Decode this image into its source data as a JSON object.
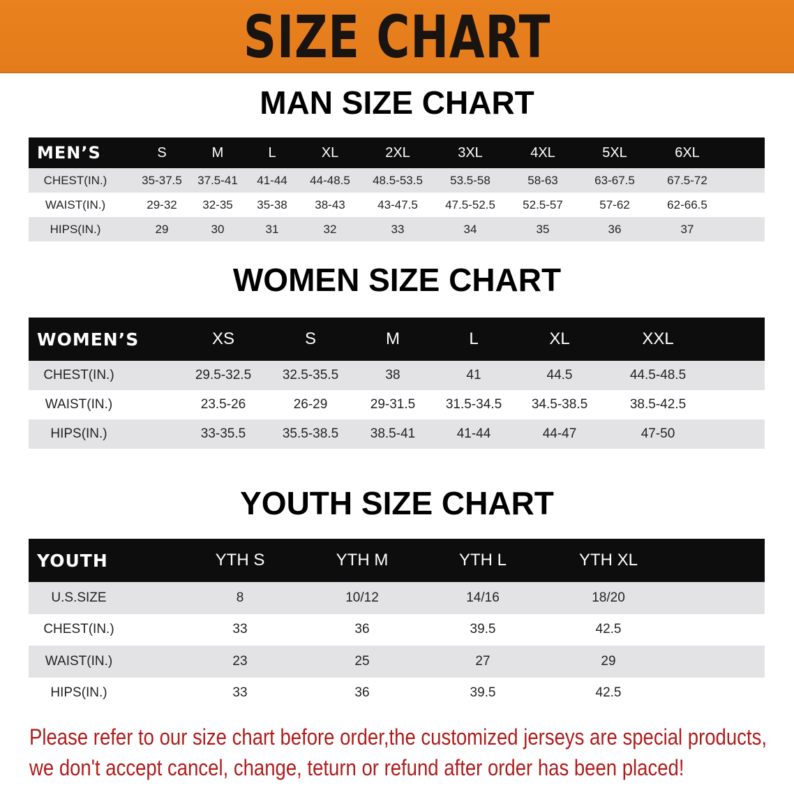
{
  "banner": {
    "title": "SIZE CHART",
    "color": "#e8801f"
  },
  "men": {
    "title": "MAN SIZE CHART",
    "header_label": "MEN’S",
    "sizes": [
      "S",
      "M",
      "L",
      "XL",
      "2XL",
      "3XL",
      "4XL",
      "5XL",
      "6XL"
    ],
    "rows": [
      {
        "label": "CHEST(IN.)",
        "values": [
          "35-37.5",
          "37.5-41",
          "41-44",
          "44-48.5",
          "48.5-53.5",
          "53.5-58",
          "58-63",
          "63-67.5",
          "67.5-72"
        ]
      },
      {
        "label": "WAIST(IN.)",
        "values": [
          "29-32",
          "32-35",
          "35-38",
          "38-43",
          "43-47.5",
          "47.5-52.5",
          "52.5-57",
          "57-62",
          "62-66.5"
        ]
      },
      {
        "label": "HIPS(IN.)",
        "values": [
          "29",
          "30",
          "31",
          "32",
          "33",
          "34",
          "35",
          "36",
          "37"
        ]
      }
    ]
  },
  "women": {
    "title": "WOMEN SIZE CHART",
    "header_label": "WOMEN’S",
    "sizes": [
      "XS",
      "S",
      "M",
      "L",
      "XL",
      "XXL"
    ],
    "rows": [
      {
        "label": "CHEST(IN.)",
        "values": [
          "29.5-32.5",
          "32.5-35.5",
          "38",
          "41",
          "44.5",
          "44.5-48.5"
        ]
      },
      {
        "label": "WAIST(IN.)",
        "values": [
          "23.5-26",
          "26-29",
          "29-31.5",
          "31.5-34.5",
          "34.5-38.5",
          "38.5-42.5"
        ]
      },
      {
        "label": "HIPS(IN.)",
        "values": [
          "33-35.5",
          "35.5-38.5",
          "38.5-41",
          "41-44",
          "44-47",
          "47-50"
        ]
      }
    ]
  },
  "youth": {
    "title": "YOUTH SIZE CHART",
    "header_label": "YOUTH",
    "sizes": [
      "YTH S",
      "YTH M",
      "YTH L",
      "YTH XL"
    ],
    "rows": [
      {
        "label": "U.S.SIZE",
        "values": [
          "8",
          "10/12",
          "14/16",
          "18/20"
        ]
      },
      {
        "label": "CHEST(IN.)",
        "values": [
          "33",
          "36",
          "39.5",
          "42.5"
        ]
      },
      {
        "label": "WAIST(IN.)",
        "values": [
          "23",
          "25",
          "27",
          "29"
        ]
      },
      {
        "label": "HIPS(IN.)",
        "values": [
          "33",
          "36",
          "39.5",
          "42.5"
        ]
      }
    ]
  },
  "notice": {
    "line1": "Please refer to our size chart before order,the customized jerseys are special products,",
    "line2": "we don't accept cancel, change, teturn or refund after order has been placed!",
    "color": "#b01c1c"
  }
}
